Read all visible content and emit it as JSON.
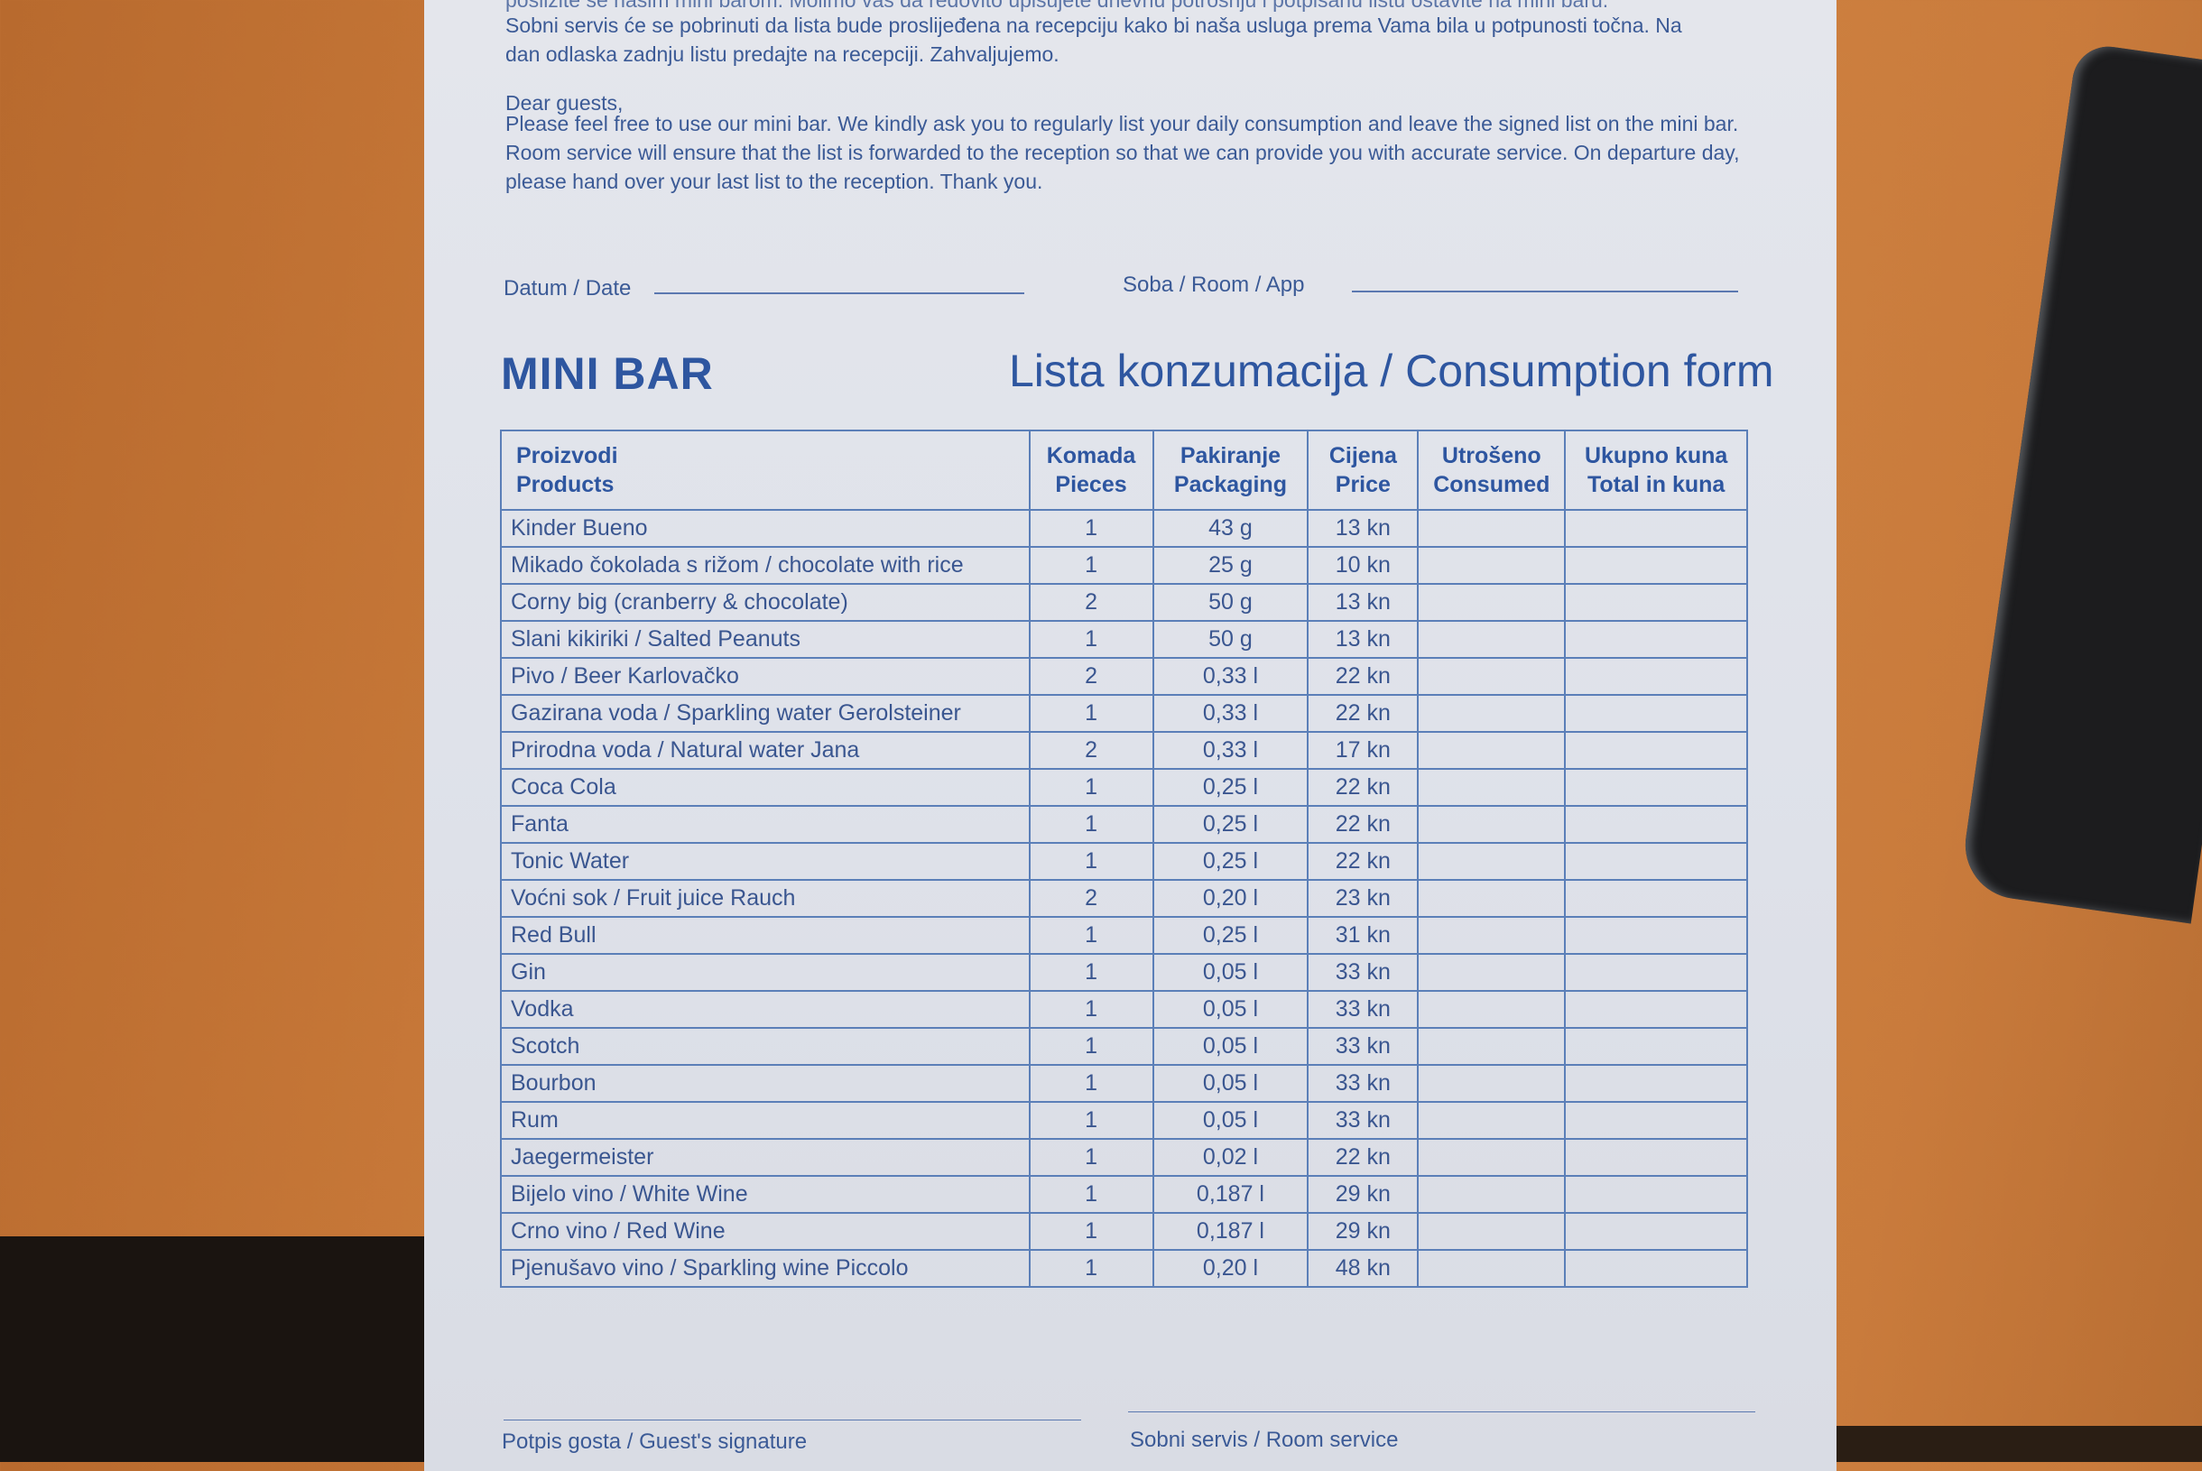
{
  "intro": {
    "hr_line_partial": "posližite se našim mini barom. Molimo vas da redovito upisujete dnevnu potrošnju i potpisanu listu ostavite na mini baru.",
    "hr_text": "Sobni servis će se pobrinuti da lista bude proslijeđena na recepciju kako bi naša usluga prema Vama bila u potpunosti točna. Na dan odlaska zadnju listu predajte na recepciji. Zahvaljujemo.",
    "en_greeting": "Dear guests,",
    "en_text": "Please feel free to use our mini bar. We kindly ask you to regularly list your daily consumption and leave the signed list on the mini bar. Room service will ensure that the list is forwarded to the reception so that we can provide you with accurate service. On departure day, please hand over your last list to the reception. Thank you."
  },
  "fields": {
    "date_label": "Datum / Date",
    "room_label": "Soba / Room / App"
  },
  "titles": {
    "left": "MINI BAR",
    "right": "Lista konzumacija / Consumption form"
  },
  "table": {
    "headers": [
      [
        "Proizvodi",
        "Products"
      ],
      [
        "Komada",
        "Pieces"
      ],
      [
        "Pakiranje",
        "Packaging"
      ],
      [
        "Cijena",
        "Price"
      ],
      [
        "Utrošeno",
        "Consumed"
      ],
      [
        "Ukupno kuna",
        "Total in kuna"
      ]
    ],
    "rows": [
      {
        "product": "Kinder Bueno",
        "pieces": "1",
        "packaging": "43 g",
        "price": "13 kn"
      },
      {
        "product": "Mikado čokolada s rižom / chocolate with rice",
        "pieces": "1",
        "packaging": "25 g",
        "price": "10 kn"
      },
      {
        "product": "Corny big (cranberry & chocolate)",
        "pieces": "2",
        "packaging": "50 g",
        "price": "13 kn"
      },
      {
        "product": "Slani kikiriki / Salted Peanuts",
        "pieces": "1",
        "packaging": "50 g",
        "price": "13 kn"
      },
      {
        "product": "Pivo / Beer Karlovačko",
        "pieces": "2",
        "packaging": "0,33 l",
        "price": "22 kn"
      },
      {
        "product": "Gazirana voda / Sparkling water Gerolsteiner",
        "pieces": "1",
        "packaging": "0,33 l",
        "price": "22 kn"
      },
      {
        "product": "Prirodna voda / Natural water Jana",
        "pieces": "2",
        "packaging": "0,33 l",
        "price": "17 kn"
      },
      {
        "product": "Coca Cola",
        "pieces": "1",
        "packaging": "0,25 l",
        "price": "22 kn"
      },
      {
        "product": "Fanta",
        "pieces": "1",
        "packaging": "0,25 l",
        "price": "22 kn"
      },
      {
        "product": "Tonic Water",
        "pieces": "1",
        "packaging": "0,25 l",
        "price": "22 kn"
      },
      {
        "product": "Voćni sok / Fruit juice Rauch",
        "pieces": "2",
        "packaging": "0,20 l",
        "price": "23 kn"
      },
      {
        "product": "Red Bull",
        "pieces": "1",
        "packaging": "0,25 l",
        "price": "31 kn"
      },
      {
        "product": "Gin",
        "pieces": "1",
        "packaging": "0,05 l",
        "price": "33 kn"
      },
      {
        "product": "Vodka",
        "pieces": "1",
        "packaging": "0,05 l",
        "price": "33 kn"
      },
      {
        "product": "Scotch",
        "pieces": "1",
        "packaging": "0,05 l",
        "price": "33 kn"
      },
      {
        "product": "Bourbon",
        "pieces": "1",
        "packaging": "0,05 l",
        "price": "33 kn"
      },
      {
        "product": "Rum",
        "pieces": "1",
        "packaging": "0,05 l",
        "price": "33 kn"
      },
      {
        "product": "Jaegermeister",
        "pieces": "1",
        "packaging": "0,02 l",
        "price": "22 kn"
      },
      {
        "product": "Bijelo vino / White Wine",
        "pieces": "1",
        "packaging": "0,187 l",
        "price": "29 kn"
      },
      {
        "product": "Crno vino / Red Wine",
        "pieces": "1",
        "packaging": "0,187 l",
        "price": "29 kn"
      },
      {
        "product": "Pjenušavo vino / Sparkling wine Piccolo",
        "pieces": "1",
        "packaging": "0,20 l",
        "price": "48 kn"
      }
    ]
  },
  "signatures": {
    "guest": "Potpis gosta / Guest's signature",
    "room_service": "Sobni servis / Room service"
  }
}
